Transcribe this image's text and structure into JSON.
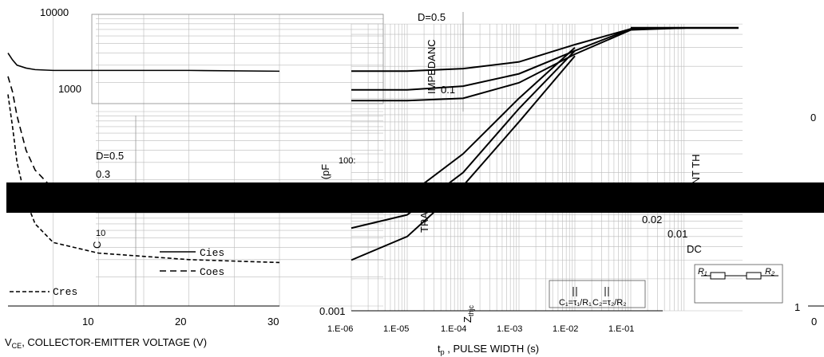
{
  "chart_data": [
    {
      "type": "line",
      "xlabel": "V",
      "xlabel_sub": "CE",
      "xlabel_rest": ", COLLECTOR-EMITTER VOLTAGE (V)",
      "ylabel": "C",
      "x_ticks": [
        "10",
        "20",
        "30"
      ],
      "y_ticks": [
        "10000",
        "1000",
        "100",
        "10"
      ],
      "xlim": [
        0,
        30
      ],
      "ylim": [
        10,
        10000
      ],
      "y_scale": "log",
      "legend": [
        "Cies",
        "Coes",
        "Cres"
      ],
      "series": [
        {
          "name": "Cies",
          "style": "solid",
          "x": [
            0,
            0.5,
            1,
            2,
            3,
            5,
            10,
            20,
            30
          ],
          "y": [
            4000,
            3400,
            3000,
            2800,
            2700,
            2650,
            2650,
            2650,
            2600
          ]
        },
        {
          "name": "Coes",
          "style": "dashed",
          "x": [
            0,
            0.5,
            1,
            2,
            3,
            5,
            10,
            20,
            30
          ],
          "y": [
            2300,
            1600,
            900,
            400,
            250,
            160,
            120,
            100,
            95
          ]
        },
        {
          "name": "Cres",
          "style": "dashed",
          "x": [
            0,
            0.5,
            1,
            2,
            3,
            5,
            10,
            20,
            30
          ],
          "y": [
            1500,
            700,
            300,
            120,
            70,
            45,
            35,
            30,
            28
          ]
        }
      ]
    },
    {
      "type": "line",
      "xlabel": "t",
      "xlabel_sub": "p",
      "xlabel_rest": " , PULSE WIDTH (s)",
      "ylabel": "Z",
      "ylabel_sub": "thjc",
      "ylabel_fragment_1": "IMPEDANC",
      "ylabel_fragment_2": "ANCE (pF",
      "ylabel_fragment_3": "TRA",
      "y_tick_fragment": "100:",
      "x_ticks": [
        "1.E-06",
        "1.E-05",
        "1.E-04",
        "1.E-03",
        "1.E-02",
        "1.E-01"
      ],
      "y_ticks": [
        "0.001",
        "0.1"
      ],
      "x_scale": "log",
      "y_scale": "log",
      "annotations": [
        "D=0.5",
        "0.02",
        "0.01",
        "DC",
        "D=0.5",
        "0.3"
      ],
      "rc_labels": [
        "C₁=τ₁/R₁",
        "C₂=τ₂/R₂"
      ],
      "network_labels": [
        "R₁",
        "R₂"
      ],
      "series": [
        {
          "name": "D=0.5",
          "x": [
            1e-06,
            1e-05,
            0.0001,
            0.001,
            0.01,
            0.1,
            1
          ],
          "y": [
            0.18,
            0.18,
            0.19,
            0.22,
            0.32,
            0.45,
            0.46
          ]
        },
        {
          "name": "",
          "x": [
            1e-06,
            1e-05,
            0.0001,
            0.001,
            0.01,
            0.1,
            1
          ],
          "y": [
            0.12,
            0.12,
            0.13,
            0.17,
            0.28,
            0.45,
            0.46
          ]
        },
        {
          "name": "",
          "x": [
            1e-06,
            1e-05,
            0.0001,
            0.001,
            0.01,
            0.1,
            1
          ],
          "y": [
            0.095,
            0.095,
            0.1,
            0.14,
            0.26,
            0.44,
            0.46
          ]
        },
        {
          "name": "0.02",
          "x": [
            1e-06,
            1e-05,
            0.0001,
            0.001,
            0.01
          ],
          "y": [
            0.01,
            0.012,
            0.03,
            0.1,
            0.3
          ]
        },
        {
          "name": "0.01",
          "x": [
            1e-06,
            1e-05,
            0.0001,
            0.001,
            0.01
          ],
          "y": [
            0.006,
            0.008,
            0.02,
            0.08,
            0.28
          ]
        },
        {
          "name": "DC",
          "x": [
            1e-06,
            1e-05,
            0.0001,
            0.001,
            0.01
          ],
          "y": [
            0.003,
            0.005,
            0.015,
            0.06,
            0.25
          ]
        }
      ]
    },
    {
      "type": "line",
      "ylabel_fragment": "ENT TH",
      "y_ticks": [
        "1"
      ],
      "x_ticks": [
        "0"
      ]
    }
  ]
}
